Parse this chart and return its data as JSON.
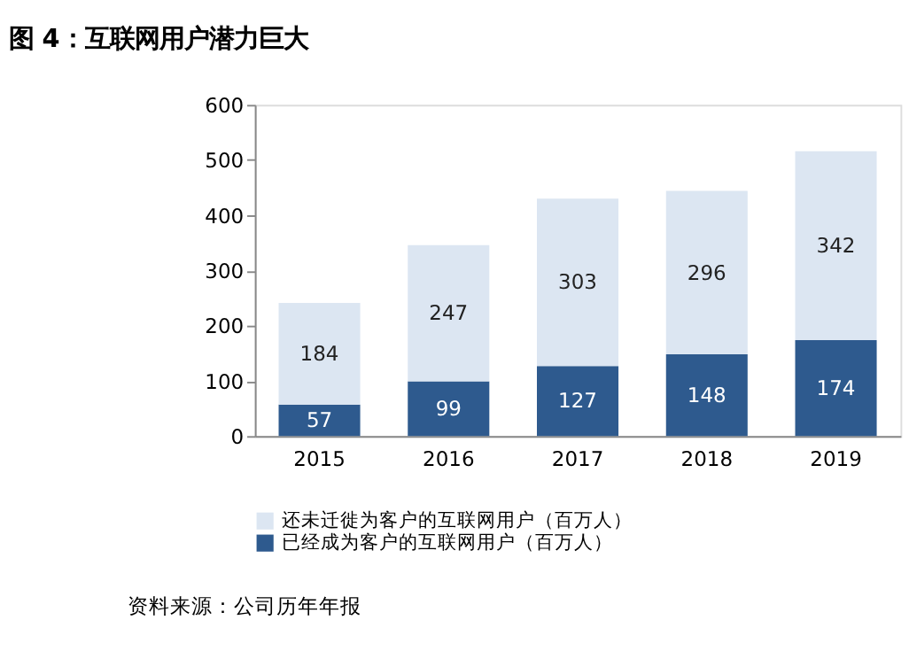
{
  "chart_data": {
    "type": "bar",
    "title": "图 4：互联网用户潜力巨大",
    "categories": [
      "2015",
      "2016",
      "2017",
      "2018",
      "2019"
    ],
    "stacked": true,
    "series": [
      {
        "name": "已经成为客户的互联网用户（百万人）",
        "color": "#2e5a8e",
        "values": [
          57,
          99,
          127,
          148,
          174
        ]
      },
      {
        "name": "还未迁徙为客户的互联网用户（百万人）",
        "color": "#dce6f2",
        "values": [
          184,
          247,
          303,
          296,
          342
        ]
      }
    ],
    "ylim": [
      0,
      600
    ],
    "yticks": [
      0,
      100,
      200,
      300,
      400,
      500,
      600
    ],
    "data_labels": true,
    "grid": false,
    "legend": "bottom",
    "annotations": [
      "资料来源：公司历年年报"
    ]
  }
}
